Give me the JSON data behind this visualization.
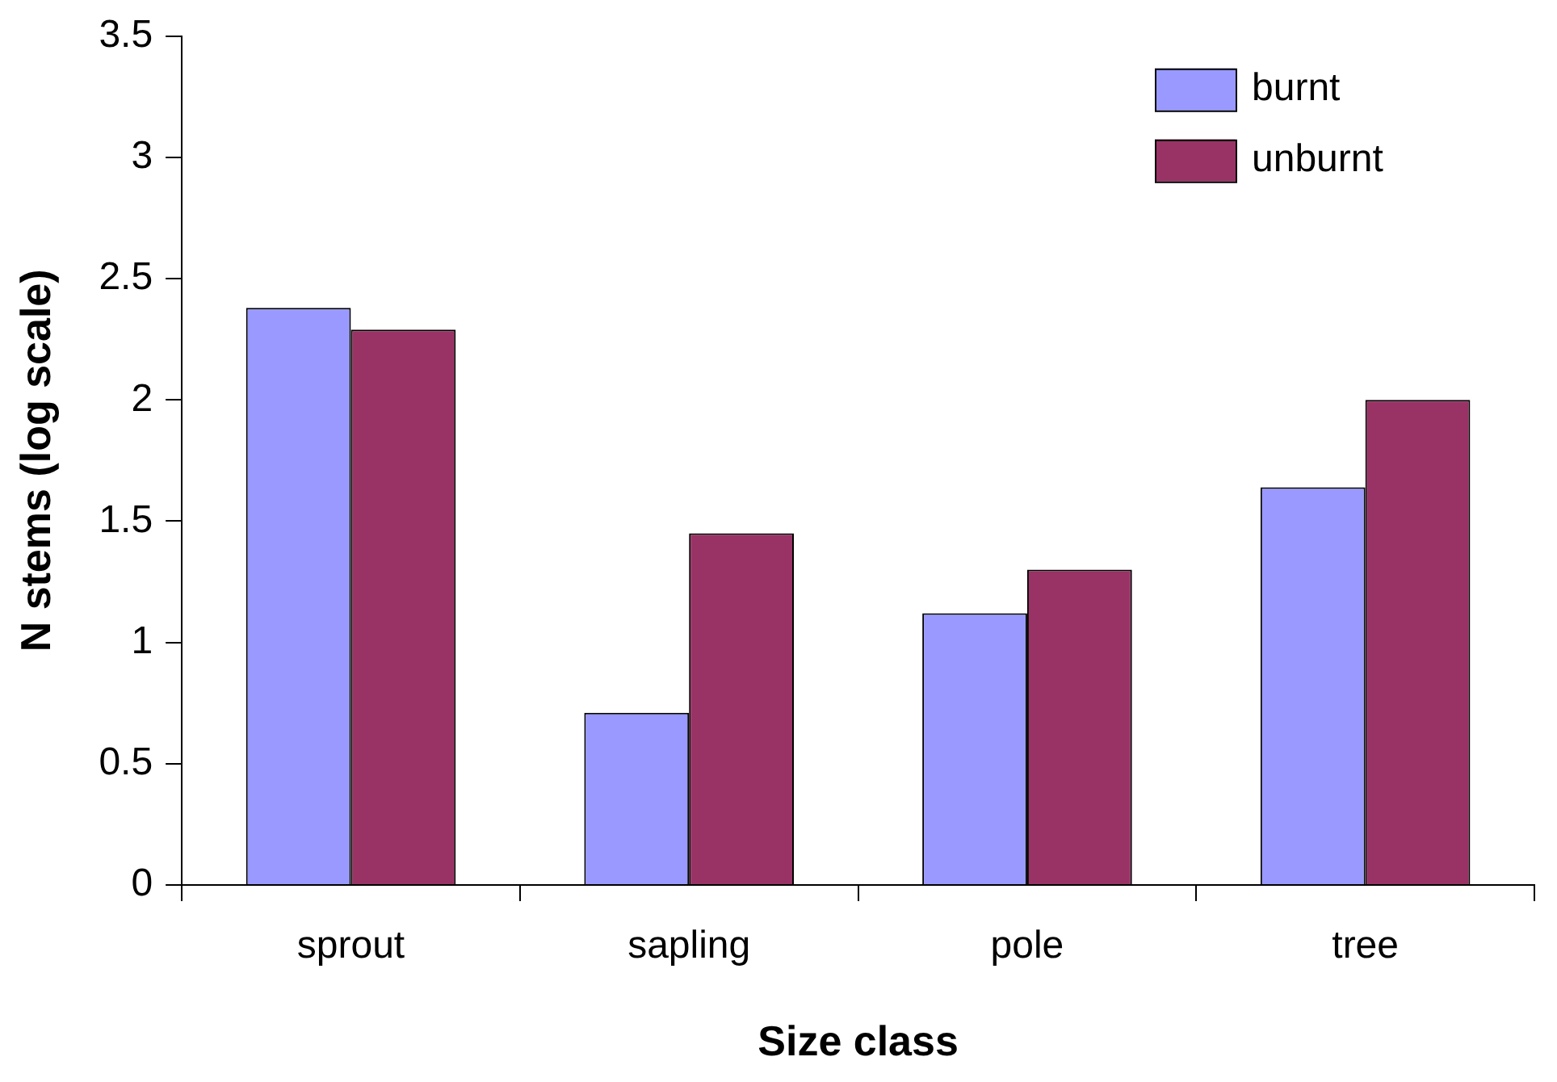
{
  "chart_data": {
    "type": "bar",
    "xlabel": "Size class",
    "ylabel": "N stems (log scale)",
    "categories": [
      "sprout",
      "sapling",
      "pole",
      "tree"
    ],
    "series": [
      {
        "name": "burnt",
        "color": "#9999ff",
        "values": [
          2.38,
          0.71,
          1.12,
          1.64
        ]
      },
      {
        "name": "unburnt",
        "color": "#993366",
        "values": [
          2.29,
          1.45,
          1.3,
          2.0
        ]
      }
    ],
    "ylim": [
      0,
      3.5
    ],
    "yticks": [
      0,
      0.5,
      1,
      1.5,
      2,
      2.5,
      3,
      3.5
    ],
    "legend": "top right"
  }
}
